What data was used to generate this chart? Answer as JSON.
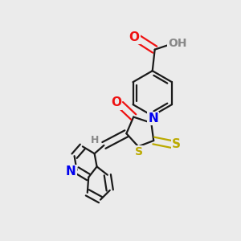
{
  "background_color": "#ebebeb",
  "bond_color": "#1a1a1a",
  "bond_width": 1.6,
  "atom_colors": {
    "O": "#ee1111",
    "N": "#0000ee",
    "S": "#bbaa00",
    "H": "#888888",
    "C": "#1a1a1a"
  },
  "font_size": 9,
  "fig_size": [
    3.0,
    3.0
  ],
  "dpi": 100
}
